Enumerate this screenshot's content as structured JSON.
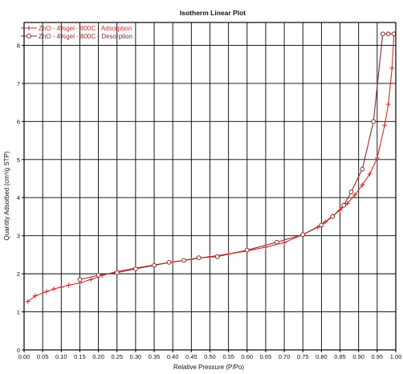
{
  "chart_data": {
    "type": "line",
    "title": "Isotherm Linear Plot",
    "xlabel": "Relative Pressure (P/Po)",
    "ylabel": "Quantity Adsorbed (cm³/g STP)",
    "xlim": [
      0,
      1.0
    ],
    "ylim": [
      0,
      8.6
    ],
    "grid": true,
    "legend_position": "top-left",
    "x_ticks": [
      "0.00",
      "0.05",
      "0.10",
      "0.15",
      "0.20",
      "0.25",
      "0.30",
      "0.35",
      "0.40",
      "0.45",
      "0.50",
      "0.55",
      "0.60",
      "0.65",
      "0.70",
      "0.75",
      "0.80",
      "0.85",
      "0.90",
      "0.95",
      "1.00"
    ],
    "y_ticks": [
      "0",
      "1",
      "2",
      "3",
      "4",
      "5",
      "6",
      "7",
      "8"
    ],
    "series": [
      {
        "name": "ZnO - 4%gel - 800C - Adsorption",
        "color": "#d42a2a",
        "marker": "plus",
        "x": [
          0.01,
          0.03,
          0.06,
          0.08,
          0.1,
          0.12,
          0.15,
          0.18,
          0.21,
          0.25,
          0.3,
          0.35,
          0.4,
          0.45,
          0.5,
          0.55,
          0.6,
          0.65,
          0.7,
          0.75,
          0.79,
          0.81,
          0.83,
          0.85,
          0.87,
          0.89,
          0.91,
          0.93,
          0.95,
          0.97,
          0.98,
          0.99,
          0.995
        ],
        "y": [
          1.27,
          1.42,
          1.53,
          1.6,
          1.65,
          1.7,
          1.76,
          1.85,
          1.96,
          2.06,
          2.15,
          2.23,
          2.31,
          2.38,
          2.45,
          2.52,
          2.6,
          2.7,
          2.82,
          3.03,
          3.22,
          3.36,
          3.52,
          3.67,
          3.85,
          4.07,
          4.33,
          4.62,
          5.04,
          5.9,
          6.45,
          7.4,
          8.3
        ]
      },
      {
        "name": "ZnO - 4%gel - 800C - Desorption",
        "color": "#8a2a2a",
        "marker": "circle",
        "x": [
          0.995,
          0.98,
          0.965,
          0.94,
          0.91,
          0.88,
          0.86,
          0.83,
          0.8,
          0.75,
          0.68,
          0.6,
          0.52,
          0.47,
          0.43,
          0.39,
          0.35,
          0.3,
          0.25,
          0.2,
          0.15
        ],
        "y": [
          8.3,
          8.3,
          8.3,
          6.0,
          4.75,
          4.15,
          3.8,
          3.5,
          3.28,
          3.03,
          2.83,
          2.62,
          2.45,
          2.42,
          2.35,
          2.3,
          2.22,
          2.13,
          2.03,
          1.96,
          1.85
        ]
      }
    ]
  }
}
